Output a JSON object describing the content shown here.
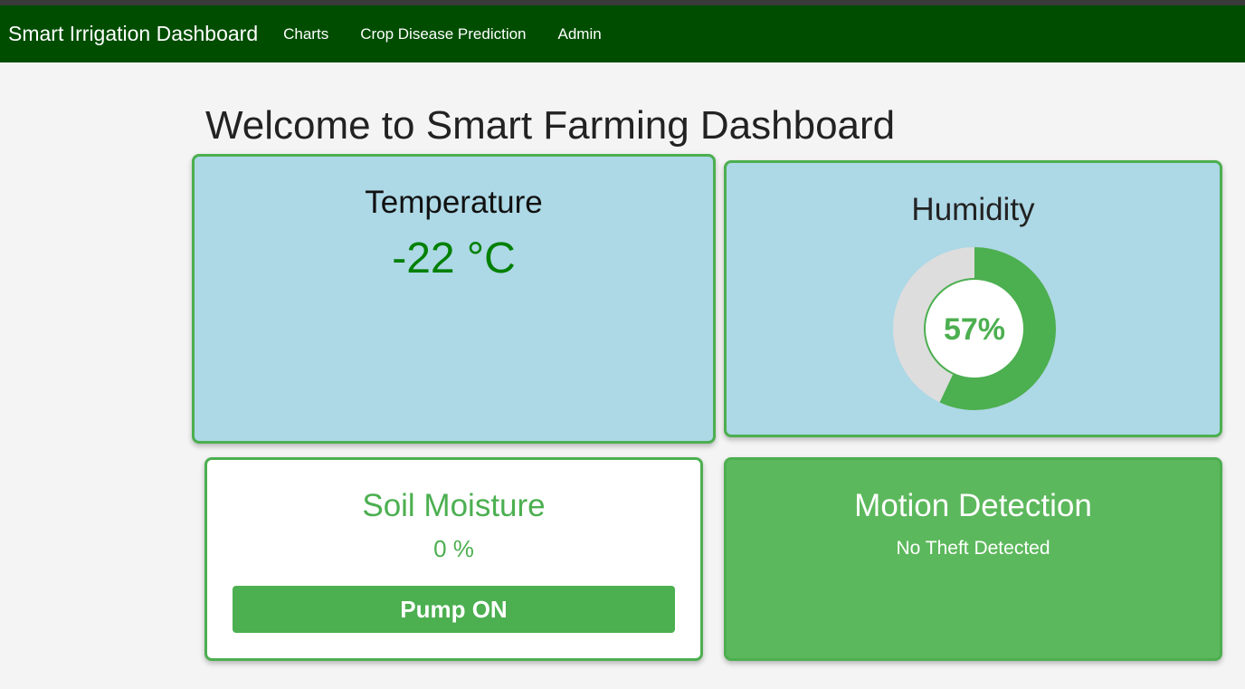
{
  "nav": {
    "brand": "Smart Irrigation Dashboard",
    "links": [
      "Charts",
      "Crop Disease Prediction",
      "Admin"
    ]
  },
  "page": {
    "title": "Welcome to Smart Farming Dashboard"
  },
  "temperature": {
    "title": "Temperature",
    "value": "-22 °C"
  },
  "humidity": {
    "title": "Humidity",
    "value_label": "57%",
    "fraction": 0.57
  },
  "soil": {
    "title": "Soil Moisture",
    "value": "0 %",
    "pump_label": "Pump ON"
  },
  "motion": {
    "title": "Motion Detection",
    "status": "No Theft Detected"
  },
  "colors": {
    "navbar": "#004d00",
    "accent_green": "#4caf50",
    "card_blue": "#add8e6",
    "motion_green": "#5cb85c",
    "gauge_track": "#dddddd",
    "temp_value": "#008000"
  }
}
